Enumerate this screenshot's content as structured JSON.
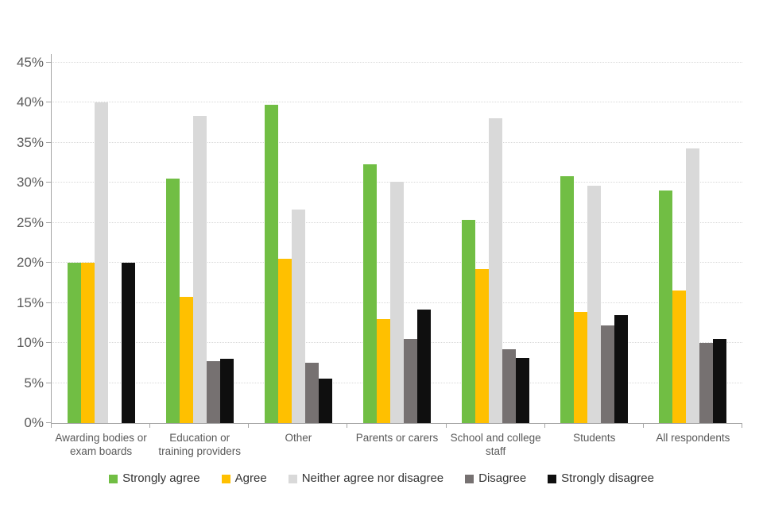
{
  "chart_data": {
    "type": "bar",
    "title": "",
    "categories": [
      "Awarding bodies or exam boards",
      "Education or training providers",
      "Other",
      "Parents or carers",
      "School and college staff",
      "Students",
      "All respondents"
    ],
    "series": [
      {
        "name": "Strongly agree",
        "color": "#71BE44",
        "values": [
          20.0,
          30.5,
          39.7,
          32.3,
          25.4,
          30.8,
          29.0
        ]
      },
      {
        "name": "Agree",
        "color": "#FFC000",
        "values": [
          20.0,
          15.8,
          20.5,
          13.0,
          19.2,
          13.9,
          16.6
        ]
      },
      {
        "name": "Neither agree nor disagree",
        "color": "#D9D9D9",
        "values": [
          40.0,
          38.4,
          26.7,
          30.1,
          38.1,
          29.6,
          34.3
        ]
      },
      {
        "name": "Disagree",
        "color": "#767171",
        "values": [
          0.0,
          7.7,
          7.5,
          10.5,
          9.2,
          12.2,
          10.0
        ]
      },
      {
        "name": "Strongly disagree",
        "color": "#0F0F0F",
        "values": [
          20.0,
          8.0,
          5.6,
          14.2,
          8.1,
          13.5,
          10.5
        ]
      }
    ],
    "y_axis": {
      "min": 0,
      "max": 45,
      "step": 5,
      "tick_labels": [
        "0%",
        "5%",
        "10%",
        "15%",
        "20%",
        "25%",
        "30%",
        "35%",
        "40%",
        "45%"
      ],
      "gridlines": "dotted"
    },
    "x_axis": {
      "label": ""
    },
    "legend_position": "bottom",
    "background_color": "#ffffff"
  }
}
